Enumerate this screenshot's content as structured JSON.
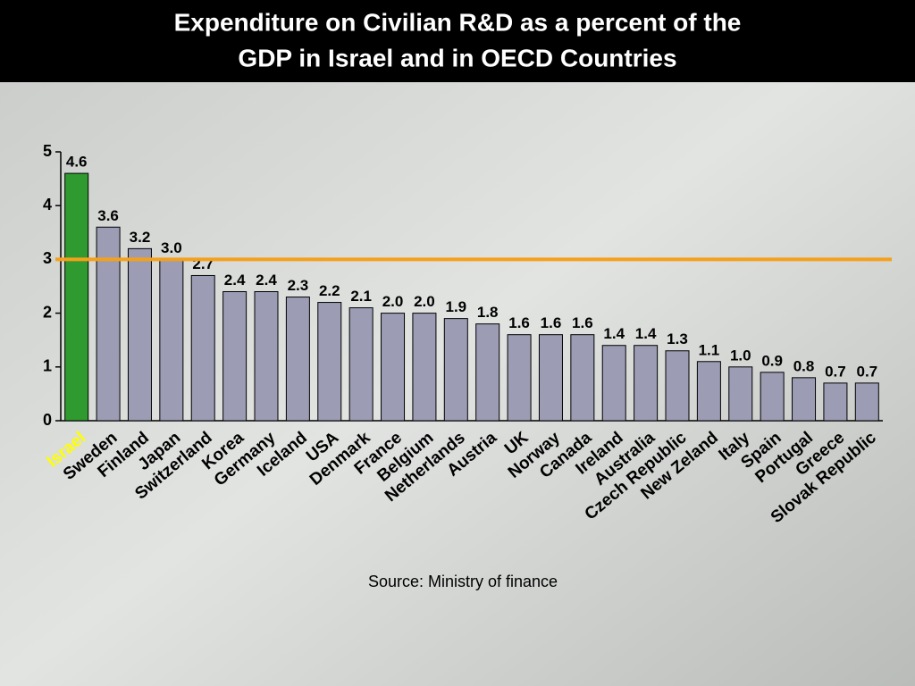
{
  "chart_data": {
    "type": "bar",
    "title": "Expenditure on Civilian R&D as a percent of the GDP in Israel and in OECD Countries",
    "title_lines": [
      "Expenditure on Civilian R&D as a percent of the",
      "GDP in Israel and in OECD Countries"
    ],
    "source": "Source: Ministry of finance",
    "categories": [
      "Israel",
      "Sweden",
      "Finland",
      "Japan",
      "Switzerland",
      "Korea",
      "Germany",
      "Iceland",
      "USA",
      "Denmark",
      "France",
      "Belgium",
      "Netherlands",
      "Austria",
      "UK",
      "Norway",
      "Canada",
      "Ireland",
      "Australia",
      "Czech Republic",
      "New Zeland",
      "Italy",
      "Spain",
      "Portugal",
      "Greece",
      "Slovak Republic"
    ],
    "values": [
      4.6,
      3.6,
      3.2,
      3.0,
      2.7,
      2.4,
      2.4,
      2.3,
      2.2,
      2.1,
      2.0,
      2.0,
      1.9,
      1.8,
      1.6,
      1.6,
      1.6,
      1.4,
      1.4,
      1.3,
      1.1,
      1.0,
      0.9,
      0.8,
      0.7,
      0.7
    ],
    "value_labels": [
      "4.6",
      "3.6",
      "3.2",
      "3.0",
      "2.7",
      "2.4",
      "2.4",
      "2.3",
      "2.2",
      "2.1",
      "2.0",
      "2.0",
      "1.9",
      "1.8",
      "1.6",
      "1.6",
      "1.6",
      "1.4",
      "1.4",
      "1.3",
      "1.1",
      "1.0",
      "0.9",
      "0.8",
      "0.7",
      "0.7"
    ],
    "colors": [
      "#2f9a2f",
      "#9c9cb4",
      "#9c9cb4",
      "#9c9cb4",
      "#9c9cb4",
      "#9c9cb4",
      "#9c9cb4",
      "#9c9cb4",
      "#9c9cb4",
      "#9c9cb4",
      "#9c9cb4",
      "#9c9cb4",
      "#9c9cb4",
      "#9c9cb4",
      "#9c9cb4",
      "#9c9cb4",
      "#9c9cb4",
      "#9c9cb4",
      "#9c9cb4",
      "#9c9cb4",
      "#9c9cb4",
      "#9c9cb4",
      "#9c9cb4",
      "#9c9cb4",
      "#9c9cb4",
      "#9c9cb4"
    ],
    "category_label_colors": [
      "#ffff00",
      "#000000",
      "#000000",
      "#000000",
      "#000000",
      "#000000",
      "#000000",
      "#000000",
      "#000000",
      "#000000",
      "#000000",
      "#000000",
      "#000000",
      "#000000",
      "#000000",
      "#000000",
      "#000000",
      "#000000",
      "#000000",
      "#000000",
      "#000000",
      "#000000",
      "#000000",
      "#000000",
      "#000000",
      "#000000"
    ],
    "reference_line": {
      "value": 3,
      "color": "#f5a01a"
    },
    "ylim": [
      0,
      5
    ],
    "yticks": [
      0,
      1,
      2,
      3,
      4,
      5
    ]
  }
}
